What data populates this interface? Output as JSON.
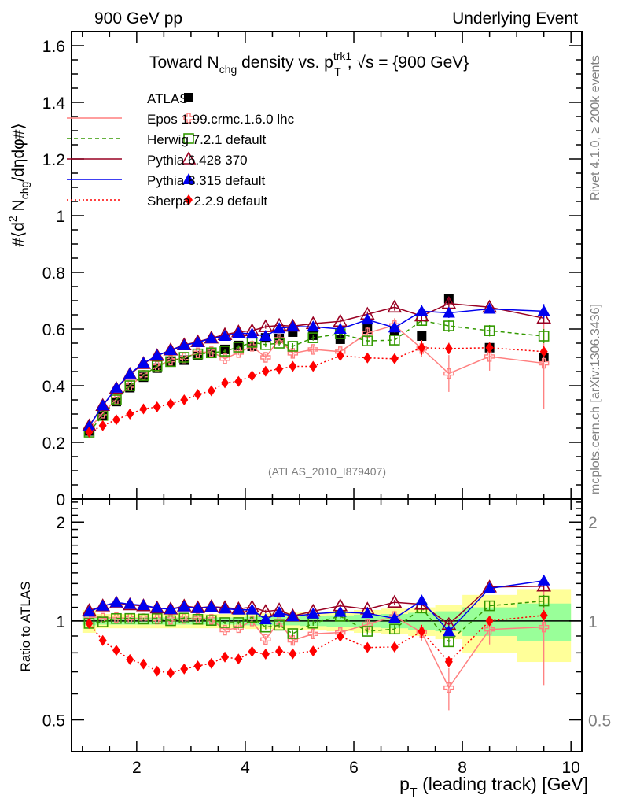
{
  "chart_data": [
    {
      "panel": "main",
      "type": "line",
      "title": "Toward N_chg density vs. p_T^trk1, √s = {900 GeV}",
      "title_parts": {
        "pre": "Toward N",
        "sub1": "chg",
        "mid": " density vs. p",
        "sup": "trk1",
        "sub2": "T",
        "post": ", √s = {900 GeV}"
      },
      "top_left_label": "900 GeV pp",
      "top_right_label": "Underlying Event",
      "right_label_top": "Rivet 4.1.0, ≥ 200k events",
      "right_label_bottom": "mcplots.cern.ch [arXiv:1306.3436]",
      "analysis_label": "(ATLAS_2010_I879407)",
      "ylabel": "#⟨d² N_chg/dηdφ#⟩",
      "ylabel_parts": {
        "pre": "#⟨d",
        "sup": "2",
        "mid": " N",
        "sub": "chg",
        "post": "/dηdφ#⟩"
      },
      "xlabel": "p_T (leading track) [GeV]",
      "xlabel_parts": {
        "pre": "p",
        "sub": "T",
        "post": " (leading track) [GeV]"
      },
      "xlim": [
        0.8,
        10.2
      ],
      "ylim": [
        0,
        1.65
      ],
      "xticks": [
        2,
        4,
        6,
        8,
        10
      ],
      "xtick_labels": [
        "2",
        "4",
        "6",
        "8",
        "10"
      ],
      "yticks": [
        0,
        0.2,
        0.4,
        0.6,
        0.8,
        1,
        1.2,
        1.4,
        1.6
      ],
      "ytick_labels": [
        "0",
        "0.2",
        "0.4",
        "0.6",
        "0.8",
        "1",
        "1.2",
        "1.4",
        "1.6"
      ],
      "legend_position": "top-left",
      "x": [
        1.125,
        1.375,
        1.625,
        1.875,
        2.125,
        2.375,
        2.625,
        2.875,
        3.125,
        3.375,
        3.625,
        3.875,
        4.125,
        4.375,
        4.625,
        4.875,
        5.25,
        5.75,
        6.25,
        6.75,
        7.25,
        7.75,
        8.5,
        9.5
      ],
      "bin_edges": [
        1.0,
        1.25,
        1.5,
        1.75,
        2.0,
        2.25,
        2.5,
        2.75,
        3.0,
        3.25,
        3.5,
        3.75,
        4.0,
        4.25,
        4.5,
        4.75,
        5.0,
        5.5,
        6.0,
        6.5,
        7.0,
        7.5,
        8.0,
        9.0,
        10.0
      ],
      "series": [
        {
          "name": "ATLAS",
          "label": "ATLAS",
          "color": "#000000",
          "marker": "filled-square",
          "line": "none",
          "values": [
            0.24,
            0.297,
            0.344,
            0.393,
            0.43,
            0.462,
            0.484,
            0.49,
            0.506,
            0.514,
            0.528,
            0.542,
            0.539,
            0.569,
            0.567,
            0.589,
            0.578,
            0.564,
            0.6,
            0.594,
            0.575,
            0.707,
            0.534,
            0.5
          ]
        },
        {
          "name": "Epos",
          "label": "Epos 1.99.crmc.1.6.0 lhc",
          "color": "#ff7f7f",
          "marker": "open-cross",
          "line": "solid",
          "values": [
            0.248,
            0.303,
            0.352,
            0.4,
            0.437,
            0.468,
            0.49,
            0.498,
            0.516,
            0.52,
            0.495,
            0.517,
            0.539,
            0.5,
            0.564,
            0.514,
            0.528,
            0.52,
            0.586,
            0.613,
            0.531,
            0.443,
            0.503,
            0.479
          ],
          "errors": [
            0.003,
            0.003,
            0.003,
            0.004,
            0.004,
            0.005,
            0.005,
            0.006,
            0.006,
            0.007,
            0.008,
            0.009,
            0.01,
            0.012,
            0.013,
            0.015,
            0.014,
            0.016,
            0.02,
            0.025,
            0.03,
            0.065,
            0.05,
            0.16
          ]
        },
        {
          "name": "Herwig",
          "label": "Herwig 7.2.1 default",
          "color": "#339900",
          "marker": "open-square",
          "line": "dashed",
          "values": [
            0.236,
            0.295,
            0.35,
            0.4,
            0.436,
            0.47,
            0.485,
            0.5,
            0.512,
            0.516,
            0.522,
            0.536,
            0.553,
            0.545,
            0.55,
            0.539,
            0.569,
            0.583,
            0.558,
            0.561,
            0.63,
            0.611,
            0.594,
            0.575
          ],
          "errors": [
            0.002,
            0.002,
            0.003,
            0.003,
            0.003,
            0.004,
            0.004,
            0.005,
            0.005,
            0.006,
            0.006,
            0.007,
            0.008,
            0.009,
            0.01,
            0.011,
            0.01,
            0.012,
            0.014,
            0.016,
            0.018,
            0.022,
            0.02,
            0.025
          ]
        },
        {
          "name": "Pythia6",
          "label": "Pythia 6.428 370",
          "color": "#990022",
          "marker": "open-triangle",
          "line": "solid",
          "values": [
            0.258,
            0.33,
            0.39,
            0.44,
            0.478,
            0.506,
            0.526,
            0.544,
            0.555,
            0.568,
            0.58,
            0.59,
            0.594,
            0.608,
            0.613,
            0.61,
            0.619,
            0.627,
            0.652,
            0.677,
            0.646,
            0.69,
            0.677,
            0.638
          ],
          "errors": [
            0.002,
            0.002,
            0.002,
            0.003,
            0.003,
            0.003,
            0.004,
            0.004,
            0.004,
            0.005,
            0.005,
            0.006,
            0.006,
            0.007,
            0.008,
            0.008,
            0.008,
            0.009,
            0.01,
            0.012,
            0.014,
            0.016,
            0.015,
            0.02
          ]
        },
        {
          "name": "Pythia8",
          "label": "Pythia 8.315 default",
          "color": "#0000ee",
          "marker": "filled-triangle",
          "line": "solid",
          "values": [
            0.256,
            0.33,
            0.392,
            0.442,
            0.48,
            0.506,
            0.525,
            0.542,
            0.553,
            0.567,
            0.575,
            0.586,
            0.583,
            0.575,
            0.602,
            0.608,
            0.608,
            0.6,
            0.633,
            0.605,
            0.663,
            0.657,
            0.671,
            0.663
          ],
          "errors": [
            0.002,
            0.002,
            0.002,
            0.003,
            0.003,
            0.003,
            0.004,
            0.004,
            0.004,
            0.005,
            0.005,
            0.006,
            0.006,
            0.007,
            0.008,
            0.008,
            0.008,
            0.009,
            0.01,
            0.012,
            0.02,
            0.018,
            0.015,
            0.025
          ]
        },
        {
          "name": "Sherpa",
          "label": "Sherpa 2.2.9 default",
          "color": "#ff0000",
          "marker": "filled-diamond",
          "line": "dotted",
          "values": [
            0.236,
            0.259,
            0.28,
            0.3,
            0.318,
            0.325,
            0.336,
            0.35,
            0.369,
            0.382,
            0.41,
            0.415,
            0.435,
            0.451,
            0.459,
            0.468,
            0.468,
            0.506,
            0.498,
            0.495,
            0.534,
            0.531,
            0.534,
            0.52
          ],
          "errors": [
            0.002,
            0.002,
            0.002,
            0.003,
            0.003,
            0.003,
            0.004,
            0.004,
            0.004,
            0.005,
            0.005,
            0.006,
            0.006,
            0.007,
            0.008,
            0.008,
            0.008,
            0.009,
            0.01,
            0.012,
            0.025,
            0.02,
            0.015,
            0.02
          ]
        }
      ]
    },
    {
      "panel": "ratio",
      "type": "line",
      "ylabel": "Ratio to ATLAS",
      "yscale": "log",
      "ylim": [
        0.4,
        2.35
      ],
      "yticks": [
        0.5,
        1,
        2
      ],
      "ytick_labels": [
        "0.5",
        "1",
        "2"
      ],
      "reference": 1,
      "band_stat_rel": [
        0.03,
        0.025,
        0.025,
        0.025,
        0.025,
        0.025,
        0.025,
        0.025,
        0.025,
        0.025,
        0.025,
        0.025,
        0.03,
        0.03,
        0.03,
        0.03,
        0.035,
        0.04,
        0.045,
        0.05,
        0.06,
        0.07,
        0.1,
        0.13
      ],
      "band_total_rel": [
        0.08,
        0.05,
        0.05,
        0.05,
        0.05,
        0.05,
        0.05,
        0.05,
        0.05,
        0.05,
        0.05,
        0.05,
        0.055,
        0.055,
        0.06,
        0.06,
        0.065,
        0.07,
        0.08,
        0.09,
        0.1,
        0.12,
        0.2,
        0.25
      ]
    }
  ]
}
